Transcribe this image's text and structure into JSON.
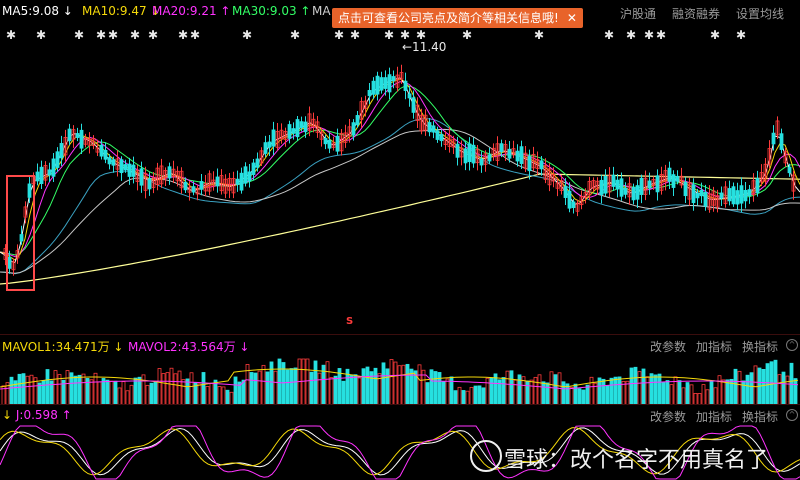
{
  "ma_legend": [
    {
      "label": "MA5:9.08",
      "arrow": "↓",
      "color": "#ffffff"
    },
    {
      "label": "MA10:9.47",
      "arrow": "↓",
      "color": "#f5d90a"
    },
    {
      "label": "MA20:9.21",
      "arrow": "↑",
      "color": "#ff33ff"
    },
    {
      "label": "MA30:9.03",
      "arrow": "↑",
      "color": "#33ff66"
    },
    {
      "label": "MA",
      "arrow": "",
      "color": "#cccccc"
    }
  ],
  "tooltip": {
    "text": "点击可查看公司亮点及简介等相关信息哦!",
    "close": "✕"
  },
  "toolbar": {
    "hgt": "沪股通",
    "margin": "融资融券",
    "settings": "设置均线"
  },
  "peak_label": "←11.40",
  "vol_panel": {
    "mavol1": "MAVOL1:34.471万",
    "mavol1_arrow": "↓",
    "mavol2": "MAVOL2:43.564万",
    "mavol2_arrow": "↓",
    "change_params": "改参数",
    "add_indicator": "加指标",
    "switch_indicator": "换指标"
  },
  "kdj_panel": {
    "j": "J:0.598",
    "j_arrow": "↑",
    "change_params": "改参数",
    "add_indicator": "加指标",
    "switch_indicator": "换指标"
  },
  "watermark": "雪球：改个名字不用真名了",
  "s_marker": "S",
  "colors": {
    "up": "#ff3b3b",
    "down": "#26e0e0",
    "ma250": "#ffff99",
    "ma60": "#3aa0c0",
    "ma120": "#c8c8c8"
  }
}
